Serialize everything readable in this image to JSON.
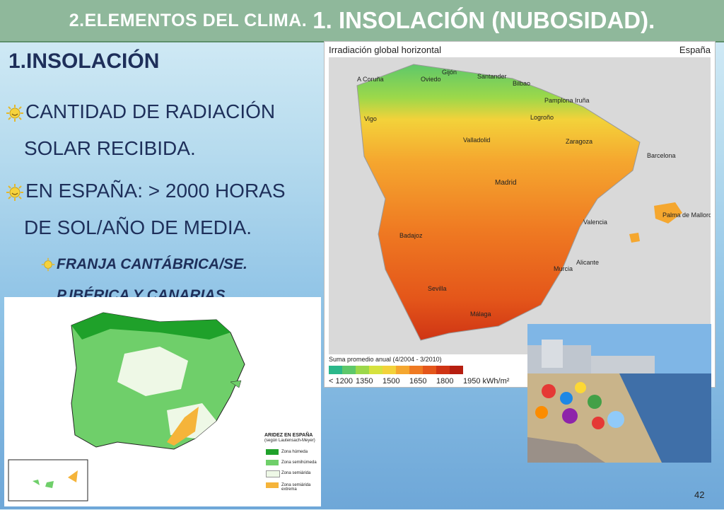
{
  "title": {
    "small": "2.ELEMENTOS DEL CLIMA.",
    "big": "1. INSOLACIÓN (NUBOSIDAD)."
  },
  "heading": "1.INSOLACIÓN",
  "bullets": [
    {
      "line1": "CANTIDAD DE RADIACIÓN",
      "line2": "SOLAR RECIBIDA."
    },
    {
      "line1": "EN ESPAÑA: > 2000 HORAS",
      "line2": "DE SOL/AÑO DE MEDIA."
    }
  ],
  "sub_bullet": {
    "line1": "FRANJA  CANTÁBRICA/SE.",
    "line2": "P.IBÉRICA  Y CANARIAS."
  },
  "map1": {
    "title": "Irradiación global horizontal",
    "region": "España",
    "legend_title": "Suma promedio anual (4/2004 - 3/2010)",
    "ticks": [
      "< 1200",
      "1350",
      "1500",
      "1650",
      "1800",
      "1950 kWh/m²"
    ],
    "colors": [
      "#2bb88a",
      "#5ec86a",
      "#9cd84a",
      "#d6e23e",
      "#f3d23a",
      "#f5a72f",
      "#ef7a22",
      "#e4561a",
      "#cf3414",
      "#b61e10"
    ],
    "cities": [
      "Gijón",
      "Santander",
      "A Coruña",
      "Oviedo",
      "Bilbao",
      "Vigo",
      "Pamplona Iruña",
      "Logroño",
      "Valladolid",
      "Zaragoza",
      "Barcelona",
      "Madrid",
      "Palma de Mallorca",
      "Valencia",
      "Badajoz",
      "Alicante",
      "Murcia",
      "Sevilla",
      "Málaga"
    ]
  },
  "map2": {
    "legend_title": "ARIDEZ EN ESPAÑA",
    "legend_subtitle": "(según Lautensach-Meyer)",
    "zones": [
      {
        "label": "Zona húmeda",
        "color": "#1fa12a"
      },
      {
        "label": "Zona semihúmeda",
        "color": "#6fcf6a"
      },
      {
        "label": "Zona semiárida",
        "color": "#eef8e6"
      },
      {
        "label": "Zona semiárida extrema",
        "color": "#f5b43a"
      }
    ]
  },
  "page_number": "42"
}
